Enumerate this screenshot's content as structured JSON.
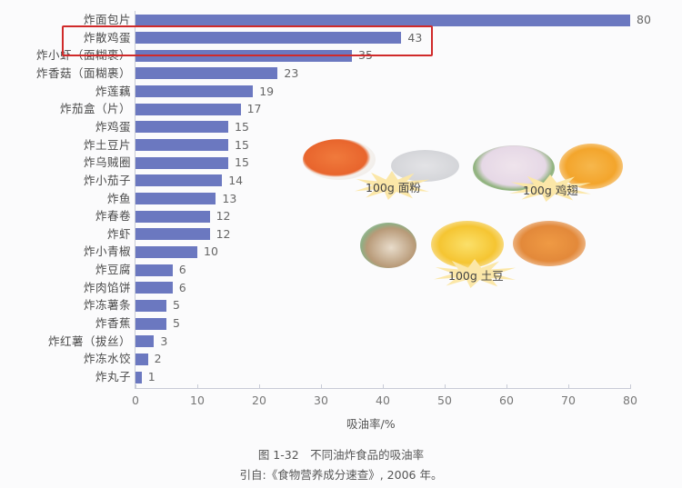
{
  "chart_data": {
    "type": "bar",
    "orientation": "horizontal",
    "title": "图 1-32　不同油炸食品的吸油率",
    "source": "引自:《食物营养成分速查》, 2006 年。",
    "xlabel": "吸油率/%",
    "ylabel": "",
    "xlim": [
      0,
      80
    ],
    "xticks": [
      "0",
      "10",
      "20",
      "30",
      "40",
      "50",
      "60",
      "70",
      "80"
    ],
    "grid": false,
    "bar_color": "#6b78c0",
    "categories": [
      "炸面包片",
      "炸散鸡蛋",
      "炸小虾（面糊裹）",
      "炸香菇（面糊裹）",
      "炸莲藕",
      "炸茄盒（片）",
      "炸鸡蛋",
      "炸土豆片",
      "炸乌贼圈",
      "炸小茄子",
      "炸鱼",
      "炸春卷",
      "炸虾",
      "炸小青椒",
      "炸豆腐",
      "炸肉馅饼",
      "炸冻薯条",
      "炸香蕉",
      "炸红薯（拔丝）",
      "炸冻水饺",
      "炸丸子"
    ],
    "values": [
      80,
      43,
      35,
      23,
      19,
      17,
      15,
      15,
      15,
      14,
      13,
      12,
      12,
      10,
      6,
      6,
      5,
      5,
      3,
      2,
      1
    ],
    "highlighted": {
      "category": "炸散鸡蛋",
      "value": 43,
      "box_color": "#d02a2a"
    },
    "annotations": [
      "100g 面粉",
      "100g 鸡翅",
      "100g 土豆"
    ]
  },
  "illustrations": [
    {
      "label": "100g 面粉"
    },
    {
      "label": "100g 鸡翅"
    },
    {
      "label": "100g 土豆"
    }
  ]
}
